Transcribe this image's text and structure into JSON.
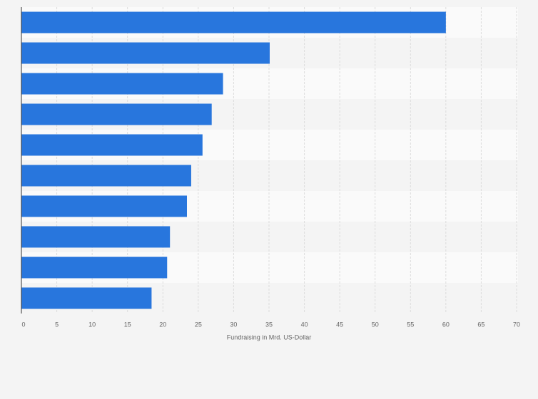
{
  "chart_data": {
    "type": "hbar",
    "x_label": "Fundraising in Mrd. US-Dollar",
    "categories": [
      null,
      null,
      null,
      null,
      null,
      null,
      null,
      null,
      null,
      null
    ],
    "values": [
      60,
      35.1,
      28.5,
      26.9,
      25.6,
      24.0,
      23.4,
      21.0,
      20.6,
      18.4
    ],
    "color": "#2876dd",
    "xlim": [
      0,
      70
    ],
    "xticks": [
      0,
      5,
      10,
      15,
      20,
      25,
      30,
      35,
      40,
      45,
      50,
      55,
      60,
      65,
      70
    ],
    "grid": true
  }
}
